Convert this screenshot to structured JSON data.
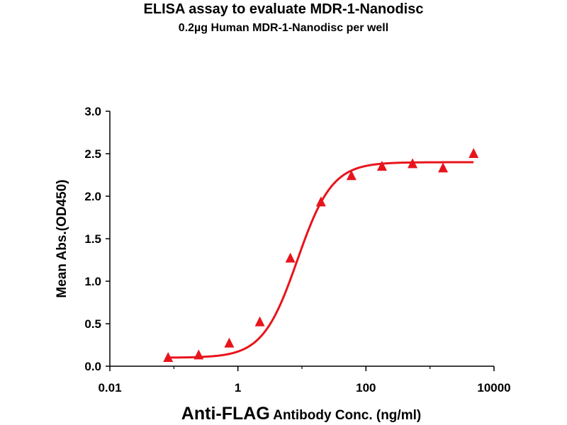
{
  "chart_data": {
    "type": "scatter",
    "title": "ELISA assay to evaluate MDR-1-Nanodisc",
    "subtitle": "0.2µg Human MDR-1-Nanodisc per well",
    "xlabel_main": "Anti-FLAG",
    "xlabel_rest": "Antibody Conc. (ng/ml)",
    "ylabel": "Mean Abs.(OD450)",
    "x_scale": "log",
    "xlim": [
      0.01,
      10000
    ],
    "ylim": [
      0,
      3.0
    ],
    "x_ticks": [
      0.01,
      1,
      100,
      10000
    ],
    "x_tick_labels": [
      "0.01",
      "1",
      "100",
      "10000"
    ],
    "y_ticks": [
      0,
      0.5,
      1.0,
      1.5,
      2.0,
      2.5,
      3.0
    ],
    "y_tick_labels": [
      "0.0",
      "0.5",
      "1.0",
      "1.5",
      "2.0",
      "2.5",
      "3.0"
    ],
    "grid": false,
    "color": "#e8141c",
    "series": [
      {
        "marker": "triangle",
        "x": [
          0.0813,
          0.244,
          0.732,
          2.2,
          6.59,
          19.8,
          59.3,
          178,
          534,
          1600,
          4800
        ],
        "y": [
          0.1,
          0.13,
          0.27,
          0.52,
          1.27,
          1.93,
          2.24,
          2.35,
          2.38,
          2.33,
          2.5
        ]
      }
    ],
    "fit_curve": {
      "model": "4PL",
      "bottom": 0.1,
      "top": 2.4,
      "ec50": 8.5,
      "hill": 1.6
    }
  }
}
